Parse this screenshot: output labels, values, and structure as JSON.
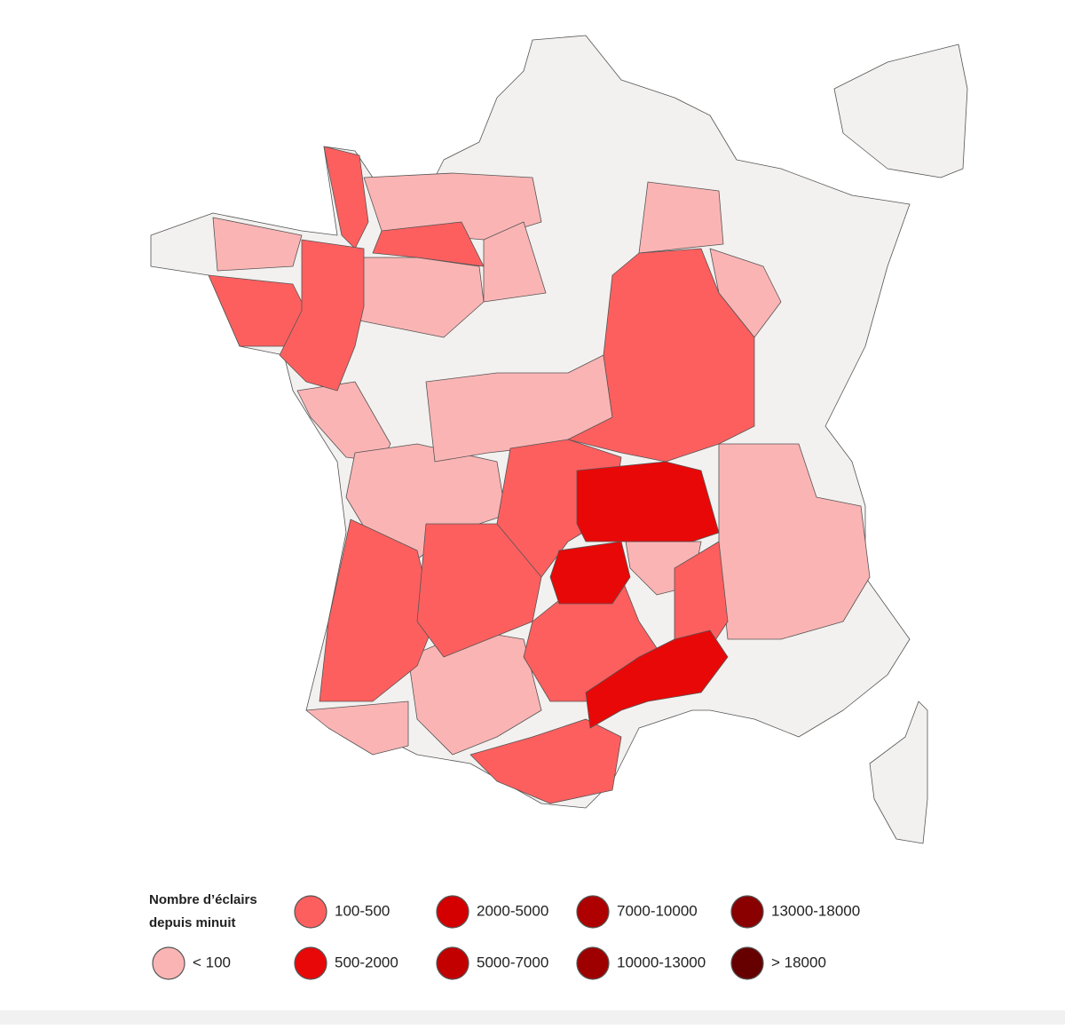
{
  "legend": {
    "title": [
      "Nombre d’éclairs",
      "depuis minuit"
    ],
    "items": [
      {
        "label": "< 100",
        "color": "#fbb4b4"
      },
      {
        "label": "100-500",
        "color": "#fd5f5f"
      },
      {
        "label": "500-2000",
        "color": "#e80808"
      },
      {
        "label": "2000-5000",
        "color": "#d40000"
      },
      {
        "label": "5000-7000",
        "color": "#c20000"
      },
      {
        "label": "7000-10000",
        "color": "#ae0000"
      },
      {
        "label": "10000-13000",
        "color": "#9e0000"
      },
      {
        "label": "13000-18000",
        "color": "#8a0000"
      },
      {
        "label": "> 18000",
        "color": "#660000"
      }
    ]
  }
}
